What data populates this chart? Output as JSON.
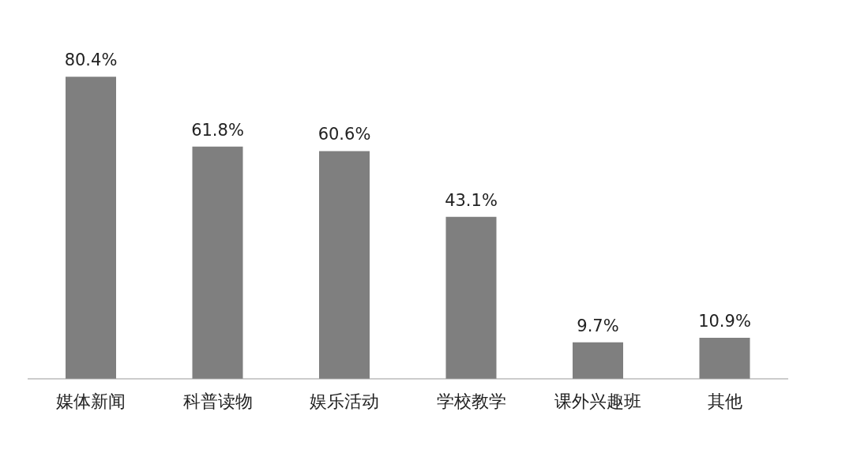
{
  "chart_data": {
    "type": "bar",
    "categories": [
      "媒体新闻",
      "科普读物",
      "娱乐活动",
      "学校教学",
      "课外兴趣班",
      "其他"
    ],
    "values": [
      80.4,
      61.8,
      60.6,
      43.1,
      9.7,
      10.9
    ],
    "value_labels": [
      "80.4%",
      "61.8%",
      "60.6%",
      "43.1%",
      "9.7%",
      "10.9%"
    ],
    "color": "#7f7f7f",
    "grid": false,
    "legend": false
  }
}
